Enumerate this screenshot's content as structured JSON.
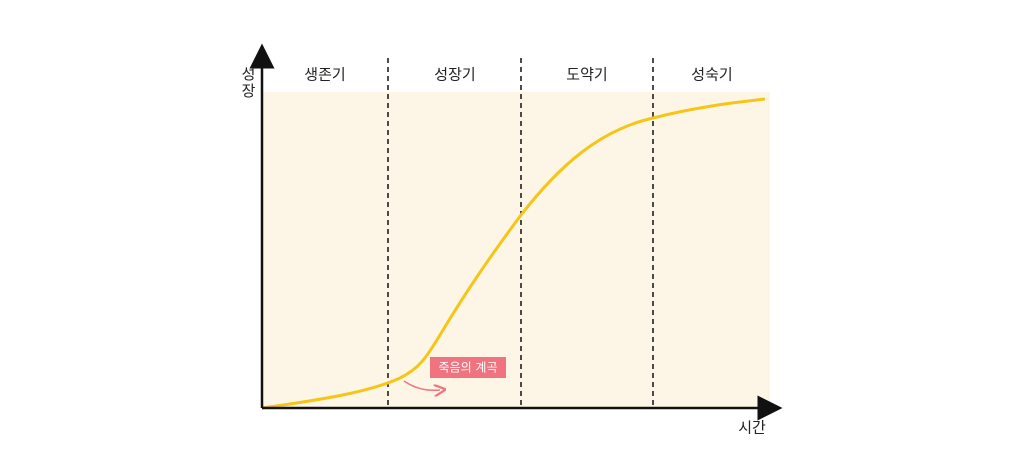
{
  "stages": [
    "생존기",
    "성장기",
    "도약기",
    "성숙기"
  ],
  "y_axis_label": "성장",
  "x_axis_label": "시간",
  "annotation": "죽음의 계곡"
}
